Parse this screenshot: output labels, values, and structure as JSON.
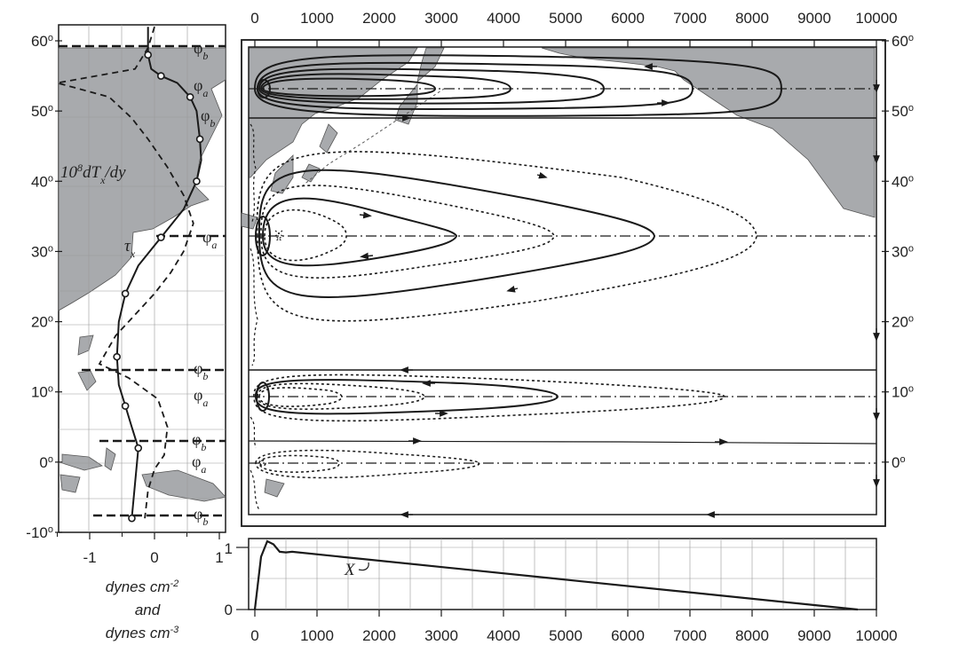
{
  "figure": {
    "top_axis": {
      "ticks": [
        "0",
        "1000",
        "2000",
        "3000",
        "4000",
        "5000",
        "6000",
        "7000",
        "8000",
        "9000",
        "10000"
      ]
    },
    "bottom_axis": {
      "ticks": [
        "0",
        "1000",
        "2000",
        "3000",
        "4000",
        "5000",
        "6000",
        "7000",
        "8000",
        "9000",
        "10000"
      ]
    },
    "lat_left": [
      "60o",
      "50o",
      "40o",
      "30o",
      "20o",
      "10o",
      "0o",
      "-10o"
    ],
    "lat_right": [
      "60o",
      "50o",
      "40o",
      "30o",
      "20o",
      "10o",
      "0o"
    ],
    "stress_axis": {
      "ticks": [
        "-1",
        "0",
        "1"
      ],
      "unit_lines": [
        "dynes cm-2",
        "and",
        "dynes cm-3"
      ]
    },
    "curve_labels": {
      "curl_label": "10^8 dTx/dy",
      "tau_label": "τx"
    },
    "phi_labels": [
      {
        "sym": "φ",
        "sub": "b"
      },
      {
        "sym": "φ",
        "sub": "a"
      },
      {
        "sym": "φ",
        "sub": "b"
      },
      {
        "sym": "φ",
        "sub": "a"
      },
      {
        "sym": "φ",
        "sub": "b"
      },
      {
        "sym": "φ",
        "sub": "a"
      },
      {
        "sym": "φ",
        "sub": "b"
      },
      {
        "sym": "φ",
        "sub": "a"
      },
      {
        "sym": "φ",
        "sub": "b"
      }
    ],
    "profile": {
      "label": "X",
      "ylim_ticks": [
        "1",
        "0"
      ]
    },
    "colors": {
      "land": "#a8aaad",
      "line": "#1a1a1a"
    }
  },
  "chart_data": [
    {
      "type": "line",
      "panel": "wind stress and curl profiles vs latitude",
      "xlim": [
        -1.5,
        1.1
      ],
      "ylim": [
        -10,
        62
      ],
      "series": [
        {
          "x": [
            -0.1,
            -0.1,
            -0.05,
            0.1,
            0.35,
            0.55,
            0.65,
            0.7,
            0.72,
            0.65,
            0.45,
            0.1,
            -0.25,
            -0.45,
            -0.55,
            -0.58,
            -0.55,
            -0.45,
            -0.35,
            -0.25,
            -0.3,
            -0.35
          ],
          "y": [
            62,
            58,
            56,
            55,
            54,
            52,
            50,
            46,
            43,
            40,
            36,
            32,
            28,
            24,
            20,
            15,
            11,
            8,
            5,
            2,
            -3,
            -8
          ]
        },
        {
          "x": [
            0.0,
            -0.1,
            -0.3,
            -1.5,
            -0.7,
            -0.35,
            -0.1,
            0.2,
            0.45,
            0.6,
            0.45,
            0.25,
            0.0,
            -0.3,
            -0.6,
            -0.85,
            -0.4,
            0.05,
            0.2,
            0.15,
            0.0,
            -0.1,
            -0.15
          ],
          "y": [
            62,
            59,
            56,
            54,
            52,
            49,
            46,
            42,
            38,
            34,
            30,
            27,
            24,
            21,
            18,
            14,
            12,
            9,
            5,
            1,
            -1,
            -4,
            -8
          ]
        }
      ]
    },
    {
      "type": "line",
      "panel": "X profile",
      "xlim": [
        0,
        10000
      ],
      "ylim": [
        0,
        1
      ],
      "x": [
        0,
        100,
        200,
        300,
        400,
        500,
        600,
        9700
      ],
      "y": [
        0,
        0.85,
        1.1,
        1.05,
        0.93,
        0.92,
        0.93,
        0
      ]
    }
  ]
}
